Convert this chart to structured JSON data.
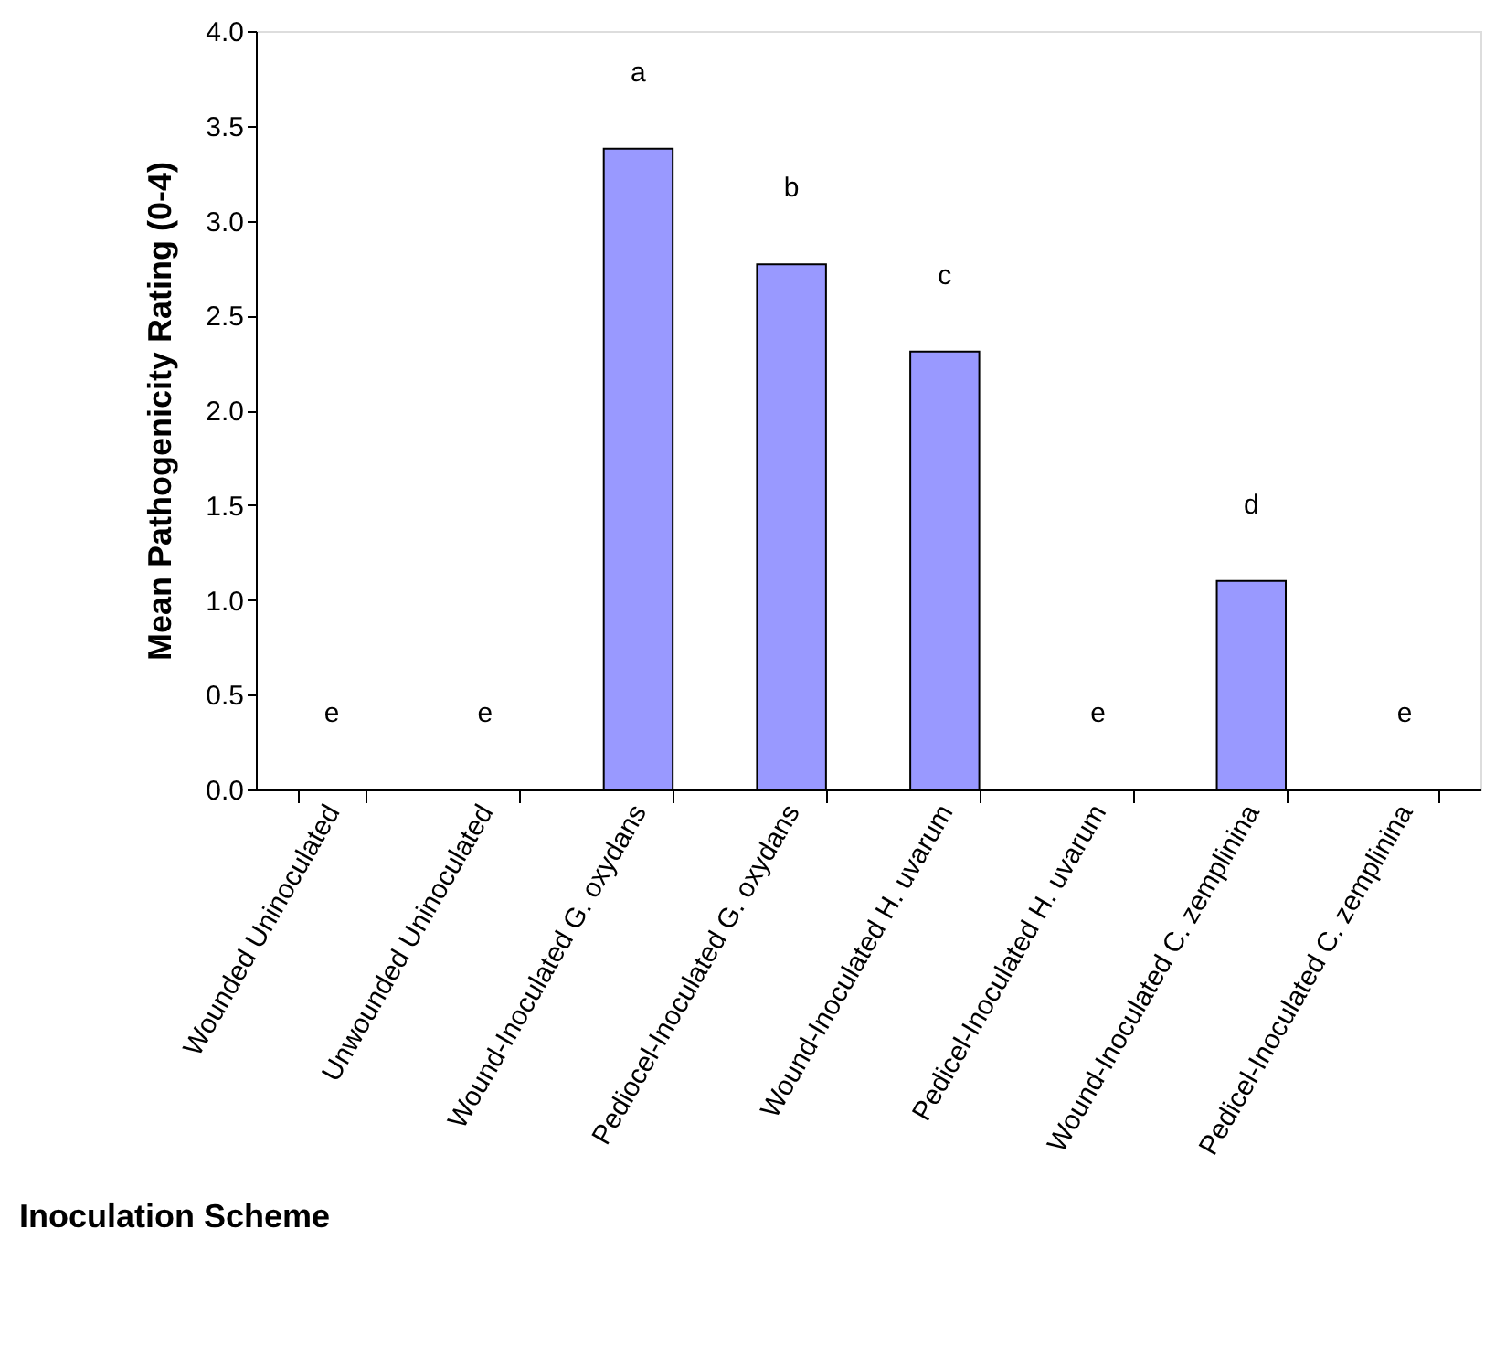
{
  "chart_data": {
    "type": "bar",
    "xlabel": "Inoculation Scheme",
    "ylabel": "Mean Pathogenicity Rating (0-4)",
    "categories": [
      "Wounded Uninoculated",
      "Unwounded Uninoculated",
      "Wound-Inoculated G. oxydans",
      "Pediocel-Inoculated G. oxydans",
      "Wound-Inoculated  H. uvarum",
      "Pedicel-Inoculated  H. uvarum",
      "Wound-Inoculated  C. zemplinina",
      "Pedicel-Inoculated  C. zemplinina"
    ],
    "values": [
      0,
      0,
      3.38,
      2.77,
      2.31,
      0,
      1.1,
      0
    ],
    "color": "#9999ff",
    "ylim": [
      0,
      4
    ],
    "yticks": [
      {
        "value": 0,
        "label": "0.0"
      },
      {
        "value": 0.5,
        "label": "0.5"
      },
      {
        "value": 1,
        "label": "1.0"
      },
      {
        "value": 1.5,
        "label": "1.5"
      },
      {
        "value": 2,
        "label": "2.0"
      },
      {
        "value": 2.5,
        "label": "2.5"
      },
      {
        "value": 3,
        "label": "3.0"
      },
      {
        "value": 3.5,
        "label": "3.5"
      },
      {
        "value": 4,
        "label": "4.0"
      }
    ],
    "grid": false,
    "annotations": [
      "e",
      "e",
      "a",
      "b",
      "c",
      "e",
      "d",
      "e"
    ]
  }
}
